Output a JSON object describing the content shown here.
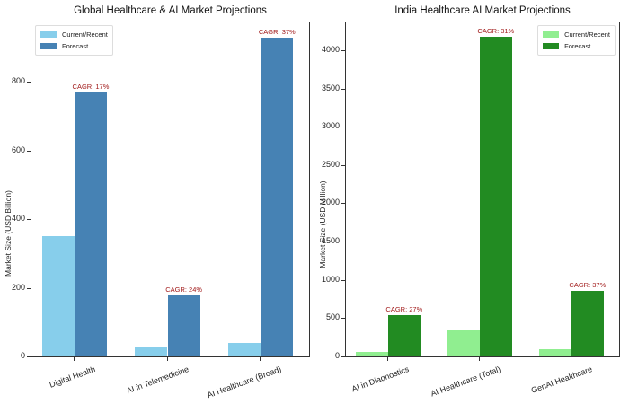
{
  "chart_data": [
    {
      "type": "bar",
      "title": "Global Healthcare & AI Market Projections",
      "xlabel": "",
      "ylabel": "Market Size (USD Billion)",
      "categories": [
        "Digital Health",
        "AI in Telemedicine",
        "AI Healthcare (Broad)"
      ],
      "series": [
        {
          "name": "Current/Recent",
          "color": "#87CEEB",
          "values": [
            350,
            25,
            39
          ]
        },
        {
          "name": "Forecast",
          "color": "#4682B4",
          "values": [
            770,
            177,
            930
          ]
        }
      ],
      "annotations": [
        "CAGR: 17%",
        "CAGR: 24%",
        "CAGR: 37%"
      ],
      "annotation_color": "#a11a1a",
      "yticks": [
        0,
        200,
        400,
        600,
        800
      ],
      "ylim": [
        0,
        976
      ],
      "grid": false,
      "legend_position": "upper left"
    },
    {
      "type": "bar",
      "title": "India Healthcare AI Market Projections",
      "xlabel": "",
      "ylabel": "Market Size (USD Million)",
      "categories": [
        "AI in Diagnostics",
        "AI Healthcare (Total)",
        "GenAI Healthcare"
      ],
      "series": [
        {
          "name": "Current/Recent",
          "color": "#90EE90",
          "values": [
            55,
            335,
            98
          ]
        },
        {
          "name": "Forecast",
          "color": "#228B22",
          "values": [
            545,
            4180,
            862
          ]
        }
      ],
      "annotations": [
        "CAGR: 27%",
        "CAGR: 31%",
        "CAGR: 37%"
      ],
      "annotation_color": "#a11a1a",
      "yticks": [
        0,
        500,
        1000,
        1500,
        2000,
        2500,
        3000,
        3500,
        4000
      ],
      "ylim": [
        0,
        4375
      ],
      "grid": false,
      "legend_position": "upper right"
    }
  ],
  "left": {
    "title": "Global Healthcare & AI Market Projections",
    "ylabel": "Market Size (USD Billion)",
    "legend": [
      "Current/Recent",
      "Forecast"
    ],
    "yticks": [
      "0",
      "200",
      "400",
      "600",
      "800"
    ],
    "categories": [
      "Digital Health",
      "AI in Telemedicine",
      "AI Healthcare (Broad)"
    ],
    "cagr": [
      "CAGR: 17%",
      "CAGR: 24%",
      "CAGR: 37%"
    ]
  },
  "right": {
    "title": "India Healthcare AI Market Projections",
    "ylabel": "Market Size (USD Million)",
    "legend": [
      "Current/Recent",
      "Forecast"
    ],
    "yticks": [
      "0",
      "500",
      "1000",
      "1500",
      "2000",
      "2500",
      "3000",
      "3500",
      "4000"
    ],
    "categories": [
      "AI in Diagnostics",
      "AI Healthcare (Total)",
      "GenAI Healthcare"
    ],
    "cagr": [
      "CAGR: 27%",
      "CAGR: 31%",
      "CAGR: 37%"
    ]
  }
}
